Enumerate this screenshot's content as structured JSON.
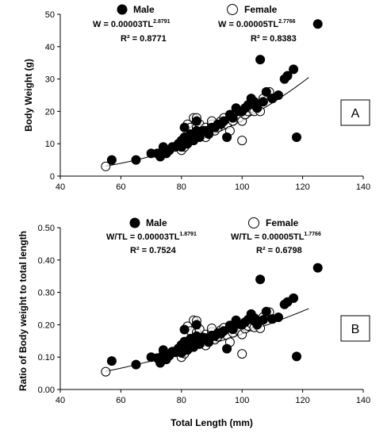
{
  "chart_data": [
    {
      "type": "scatter",
      "panel": "A",
      "ylabel": "Body Weight (g)",
      "xlabel": "",
      "xlim": [
        40,
        140
      ],
      "ylim": [
        0,
        50
      ],
      "xticks": [
        "40",
        "60",
        "80",
        "100",
        "120",
        "140"
      ],
      "yticks": [
        "0",
        "10",
        "20",
        "30",
        "40",
        "50"
      ],
      "grid": false,
      "legend": "top",
      "series": [
        {
          "name": "Male",
          "marker": "filled-circle",
          "equation_base": "W = 0.00003TL",
          "equation_exp": "2.8791",
          "r2": "R² = 0.8771",
          "points": [
            [
              57,
              5
            ],
            [
              65,
              5
            ],
            [
              70,
              7
            ],
            [
              72,
              7
            ],
            [
              73,
              6
            ],
            [
              74,
              8
            ],
            [
              74,
              9
            ],
            [
              75,
              7
            ],
            [
              76,
              8
            ],
            [
              77,
              9
            ],
            [
              78,
              9
            ],
            [
              79,
              10
            ],
            [
              80,
              9
            ],
            [
              80,
              11
            ],
            [
              81,
              12
            ],
            [
              81,
              15
            ],
            [
              82,
              10
            ],
            [
              82,
              11
            ],
            [
              83,
              12
            ],
            [
              83,
              13
            ],
            [
              84,
              11
            ],
            [
              84,
              13
            ],
            [
              85,
              14
            ],
            [
              85,
              17
            ],
            [
              86,
              12
            ],
            [
              86,
              13
            ],
            [
              87,
              14
            ],
            [
              88,
              14
            ],
            [
              89,
              13
            ],
            [
              90,
              15
            ],
            [
              91,
              15
            ],
            [
              92,
              16
            ],
            [
              93,
              16
            ],
            [
              94,
              17
            ],
            [
              95,
              12
            ],
            [
              96,
              19
            ],
            [
              97,
              18
            ],
            [
              98,
              21
            ],
            [
              99,
              20
            ],
            [
              100,
              20
            ],
            [
              101,
              21
            ],
            [
              102,
              22
            ],
            [
              103,
              24
            ],
            [
              104,
              22
            ],
            [
              104,
              23
            ],
            [
              105,
              21
            ],
            [
              106,
              36
            ],
            [
              107,
              23
            ],
            [
              108,
              26
            ],
            [
              110,
              24
            ],
            [
              112,
              25
            ],
            [
              114,
              30
            ],
            [
              115,
              31
            ],
            [
              117,
              33
            ],
            [
              118,
              12
            ],
            [
              125,
              47
            ]
          ]
        },
        {
          "name": "Female",
          "marker": "open-circle",
          "equation_base": "W = 0.00005TL",
          "equation_exp": "2.7766",
          "r2": "R² = 0.8383",
          "points": [
            [
              55,
              3
            ],
            [
              74,
              8
            ],
            [
              76,
              8
            ],
            [
              79,
              10
            ],
            [
              80,
              8
            ],
            [
              81,
              9
            ],
            [
              82,
              16
            ],
            [
              83,
              15
            ],
            [
              84,
              18
            ],
            [
              85,
              15
            ],
            [
              85,
              18
            ],
            [
              86,
              16
            ],
            [
              87,
              13
            ],
            [
              88,
              12
            ],
            [
              88,
              15
            ],
            [
              89,
              14
            ],
            [
              90,
              16
            ],
            [
              90,
              17
            ],
            [
              91,
              14
            ],
            [
              92,
              15
            ],
            [
              93,
              17
            ],
            [
              94,
              18
            ],
            [
              95,
              16
            ],
            [
              96,
              14
            ],
            [
              97,
              17
            ],
            [
              98,
              19
            ],
            [
              99,
              18
            ],
            [
              100,
              11
            ],
            [
              100,
              17
            ],
            [
              101,
              19
            ],
            [
              102,
              20
            ],
            [
              103,
              21
            ],
            [
              104,
              20
            ],
            [
              106,
              20
            ],
            [
              107,
              24
            ],
            [
              109,
              26
            ],
            [
              110,
              24
            ]
          ]
        }
      ],
      "trend": {
        "a": 3e-05,
        "b": 2.8791,
        "x_range": [
          55,
          122
        ]
      }
    },
    {
      "type": "scatter",
      "panel": "B",
      "ylabel": "Ratio of Body weight to total length",
      "xlabel": "Total Length (mm)",
      "xlim": [
        40,
        140
      ],
      "ylim": [
        0,
        0.5
      ],
      "xticks": [
        "40",
        "60",
        "80",
        "100",
        "120",
        "140"
      ],
      "yticks": [
        "0.00",
        "0.10",
        "0.20",
        "0.30",
        "0.40",
        "0.50"
      ],
      "grid": false,
      "legend": "top",
      "series": [
        {
          "name": "Male",
          "marker": "filled-circle",
          "equation_base": "W/TL = 0.00003TL",
          "equation_exp": "1.8791",
          "r2": "R² = 0.7524",
          "points": [
            [
              57,
              0.088
            ],
            [
              65,
              0.077
            ],
            [
              70,
              0.1
            ],
            [
              72,
              0.097
            ],
            [
              73,
              0.082
            ],
            [
              74,
              0.108
            ],
            [
              74,
              0.122
            ],
            [
              75,
              0.093
            ],
            [
              76,
              0.105
            ],
            [
              77,
              0.117
            ],
            [
              78,
              0.115
            ],
            [
              79,
              0.127
            ],
            [
              80,
              0.113
            ],
            [
              80,
              0.138
            ],
            [
              81,
              0.148
            ],
            [
              81,
              0.185
            ],
            [
              82,
              0.122
            ],
            [
              82,
              0.134
            ],
            [
              83,
              0.145
            ],
            [
              83,
              0.157
            ],
            [
              84,
              0.131
            ],
            [
              84,
              0.155
            ],
            [
              85,
              0.165
            ],
            [
              85,
              0.2
            ],
            [
              86,
              0.14
            ],
            [
              86,
              0.151
            ],
            [
              87,
              0.161
            ],
            [
              88,
              0.159
            ],
            [
              89,
              0.146
            ],
            [
              90,
              0.167
            ],
            [
              91,
              0.165
            ],
            [
              92,
              0.174
            ],
            [
              93,
              0.172
            ],
            [
              94,
              0.181
            ],
            [
              95,
              0.126
            ],
            [
              96,
              0.198
            ],
            [
              97,
              0.186
            ],
            [
              98,
              0.214
            ],
            [
              99,
              0.202
            ],
            [
              100,
              0.2
            ],
            [
              101,
              0.208
            ],
            [
              102,
              0.216
            ],
            [
              103,
              0.233
            ],
            [
              104,
              0.212
            ],
            [
              104,
              0.221
            ],
            [
              105,
              0.2
            ],
            [
              106,
              0.34
            ],
            [
              107,
              0.215
            ],
            [
              108,
              0.241
            ],
            [
              110,
              0.218
            ],
            [
              112,
              0.223
            ],
            [
              114,
              0.263
            ],
            [
              115,
              0.27
            ],
            [
              117,
              0.282
            ],
            [
              118,
              0.102
            ],
            [
              125,
              0.376
            ]
          ]
        },
        {
          "name": "Female",
          "marker": "open-circle",
          "equation_base": "W/TL = 0.00005TL",
          "equation_exp": "1.7766",
          "r2": "R² = 0.6798",
          "points": [
            [
              55,
              0.055
            ],
            [
              74,
              0.108
            ],
            [
              76,
              0.105
            ],
            [
              79,
              0.127
            ],
            [
              80,
              0.1
            ],
            [
              81,
              0.111
            ],
            [
              82,
              0.195
            ],
            [
              83,
              0.181
            ],
            [
              84,
              0.214
            ],
            [
              85,
              0.176
            ],
            [
              85,
              0.212
            ],
            [
              86,
              0.186
            ],
            [
              87,
              0.149
            ],
            [
              88,
              0.136
            ],
            [
              88,
              0.17
            ],
            [
              89,
              0.157
            ],
            [
              90,
              0.178
            ],
            [
              90,
              0.189
            ],
            [
              91,
              0.154
            ],
            [
              92,
              0.163
            ],
            [
              93,
              0.183
            ],
            [
              94,
              0.191
            ],
            [
              95,
              0.168
            ],
            [
              96,
              0.146
            ],
            [
              97,
              0.175
            ],
            [
              98,
              0.194
            ],
            [
              99,
              0.182
            ],
            [
              100,
              0.11
            ],
            [
              100,
              0.17
            ],
            [
              101,
              0.188
            ],
            [
              102,
              0.196
            ],
            [
              103,
              0.204
            ],
            [
              104,
              0.192
            ],
            [
              106,
              0.189
            ],
            [
              107,
              0.224
            ],
            [
              109,
              0.239
            ],
            [
              110,
              0.218
            ]
          ]
        }
      ],
      "trend": {
        "a": 3e-05,
        "b": 1.8791,
        "x_range": [
          55,
          122
        ]
      }
    }
  ]
}
